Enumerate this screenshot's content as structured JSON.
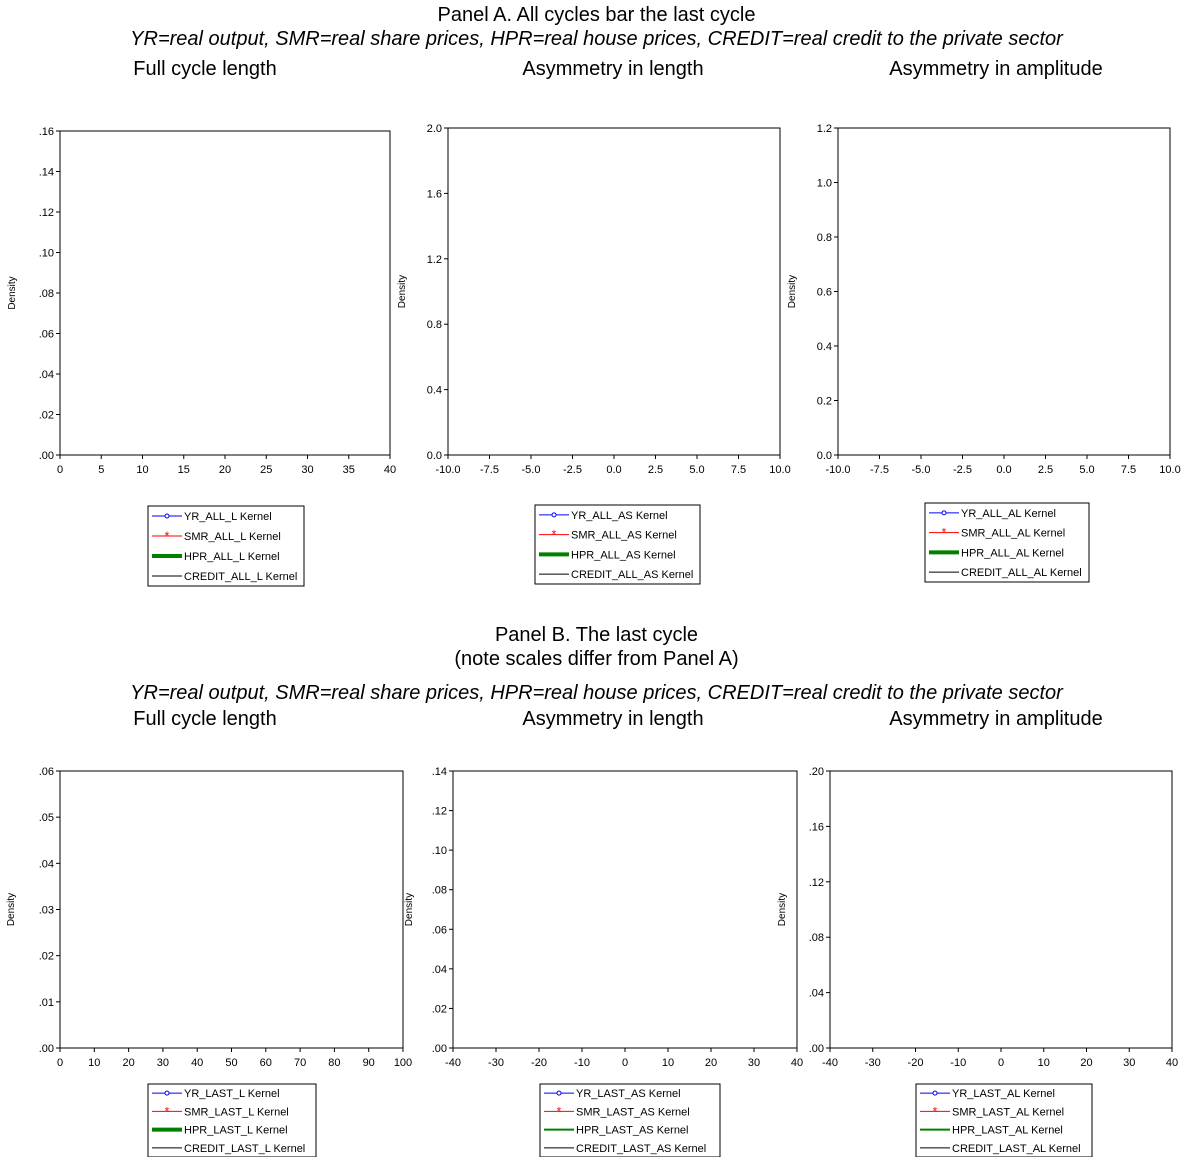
{
  "panel_a": {
    "title": "Panel A. All cycles bar the last cycle",
    "subtitle": "YR=real output, SMR=real share prices, HPR=real house prices, CREDIT=real credit to the private sector",
    "col_titles": [
      "Full cycle length",
      "Asymmetry in length",
      "Asymmetry in amplitude"
    ]
  },
  "panel_b": {
    "title": "Panel B. The last cycle",
    "note": "(note scales differ from Panel A)",
    "subtitle": "YR=real output, SMR=real share prices, HPR=real house prices, CREDIT=real credit to the private sector",
    "col_titles": [
      "Full cycle length",
      "Asymmetry in length",
      "Asymmetry in amplitude"
    ]
  },
  "colors": {
    "yr": "#0000ff",
    "smr": "#ff0000",
    "hpr": "#008000",
    "credit": "#000000"
  },
  "chart_data": [
    {
      "type": "line",
      "panel": "A",
      "ylabel": "Density",
      "xlim": [
        0,
        40
      ],
      "ylim": [
        0,
        0.16
      ],
      "xticks": [
        0,
        5,
        10,
        15,
        20,
        25,
        30,
        35,
        40
      ],
      "xtick_labels": [
        "0",
        "5",
        "10",
        "15",
        "20",
        "25",
        "30",
        "35",
        "40"
      ],
      "yticks": [
        0,
        0.02,
        0.04,
        0.06,
        0.08,
        0.1,
        0.12,
        0.14,
        0.16
      ],
      "ytick_labels": [
        ".00",
        ".02",
        ".04",
        ".06",
        ".08",
        ".10",
        ".12",
        ".14",
        ".16"
      ],
      "series": [
        {
          "name": "YR_ALL_L Kernel",
          "key": "yr",
          "marker": "circle",
          "values": []
        },
        {
          "name": "SMR_ALL_L Kernel",
          "key": "smr",
          "marker": "star",
          "values": []
        },
        {
          "name": "HPR_ALL_L Kernel",
          "key": "hpr",
          "marker": "thick",
          "values": []
        },
        {
          "name": "CREDIT_ALL_L Kernel",
          "key": "credit",
          "marker": "none",
          "values": []
        }
      ]
    },
    {
      "type": "line",
      "panel": "A",
      "ylabel": "Density",
      "xlim": [
        -10,
        10
      ],
      "ylim": [
        0,
        2
      ],
      "xticks": [
        -10,
        -7.5,
        -5,
        -2.5,
        0,
        2.5,
        5,
        7.5,
        10
      ],
      "xtick_labels": [
        "-10.0",
        "-7.5",
        "-5.0",
        "-2.5",
        "0.0",
        "2.5",
        "5.0",
        "7.5",
        "10.0"
      ],
      "yticks": [
        0,
        0.4,
        0.8,
        1.2,
        1.6,
        2.0
      ],
      "ytick_labels": [
        "0.0",
        "0.4",
        "0.8",
        "1.2",
        "1.6",
        "2.0"
      ],
      "series": [
        {
          "name": "YR_ALL_AS Kernel",
          "key": "yr",
          "marker": "circle",
          "values": []
        },
        {
          "name": "SMR_ALL_AS Kernel",
          "key": "smr",
          "marker": "star",
          "values": []
        },
        {
          "name": "HPR_ALL_AS Kernel",
          "key": "hpr",
          "marker": "thick",
          "values": []
        },
        {
          "name": "CREDIT_ALL_AS Kernel",
          "key": "credit",
          "marker": "none",
          "values": []
        }
      ]
    },
    {
      "type": "line",
      "panel": "A",
      "ylabel": "Density",
      "xlim": [
        -10,
        10
      ],
      "ylim": [
        0,
        1.2
      ],
      "xticks": [
        -10,
        -7.5,
        -5,
        -2.5,
        0,
        2.5,
        5,
        7.5,
        10
      ],
      "xtick_labels": [
        "-10.0",
        "-7.5",
        "-5.0",
        "-2.5",
        "0.0",
        "2.5",
        "5.0",
        "7.5",
        "10.0"
      ],
      "yticks": [
        0,
        0.2,
        0.4,
        0.6,
        0.8,
        1.0,
        1.2
      ],
      "ytick_labels": [
        "0.0",
        "0.2",
        "0.4",
        "0.6",
        "0.8",
        "1.0",
        "1.2"
      ],
      "series": [
        {
          "name": "YR_ALL_AL Kernel",
          "key": "yr",
          "marker": "circle",
          "values": []
        },
        {
          "name": "SMR_ALL_AL Kernel",
          "key": "smr",
          "marker": "star",
          "values": []
        },
        {
          "name": "HPR_ALL_AL Kernel",
          "key": "hpr",
          "marker": "thick",
          "values": []
        },
        {
          "name": "CREDIT_ALL_AL Kernel",
          "key": "credit",
          "marker": "none",
          "values": []
        }
      ]
    },
    {
      "type": "line",
      "panel": "B",
      "ylabel": "Density",
      "xlim": [
        0,
        100
      ],
      "ylim": [
        0,
        0.06
      ],
      "xticks": [
        0,
        10,
        20,
        30,
        40,
        50,
        60,
        70,
        80,
        90,
        100
      ],
      "xtick_labels": [
        "0",
        "10",
        "20",
        "30",
        "40",
        "50",
        "60",
        "70",
        "80",
        "90",
        "100"
      ],
      "yticks": [
        0,
        0.01,
        0.02,
        0.03,
        0.04,
        0.05,
        0.06
      ],
      "ytick_labels": [
        ".00",
        ".01",
        ".02",
        ".03",
        ".04",
        ".05",
        ".06"
      ],
      "series": [
        {
          "name": "YR_LAST_L Kernel",
          "key": "yr",
          "marker": "circle",
          "values": []
        },
        {
          "name": "SMR_LAST_L Kernel",
          "key": "smr",
          "marker": "star",
          "values": []
        },
        {
          "name": "HPR_LAST_L Kernel",
          "key": "hpr",
          "marker": "thick",
          "values": []
        },
        {
          "name": "CREDIT_LAST_L Kernel",
          "key": "credit",
          "marker": "none",
          "values": []
        }
      ]
    },
    {
      "type": "line",
      "panel": "B",
      "ylabel": "Density",
      "xlim": [
        -40,
        40
      ],
      "ylim": [
        0,
        0.14
      ],
      "xticks": [
        -40,
        -30,
        -20,
        -10,
        0,
        10,
        20,
        30,
        40
      ],
      "xtick_labels": [
        "-40",
        "-30",
        "-20",
        "-10",
        "0",
        "10",
        "20",
        "30",
        "40"
      ],
      "yticks": [
        0,
        0.02,
        0.04,
        0.06,
        0.08,
        0.1,
        0.12,
        0.14
      ],
      "ytick_labels": [
        ".00",
        ".02",
        ".04",
        ".06",
        ".08",
        ".10",
        ".12",
        ".14"
      ],
      "series": [
        {
          "name": "YR_LAST_AS Kernel",
          "key": "yr",
          "marker": "circle",
          "values": []
        },
        {
          "name": "SMR_LAST_AS Kernel",
          "key": "smr",
          "marker": "star",
          "values": []
        },
        {
          "name": "HPR_LAST_AS Kernel",
          "key": "hpr",
          "marker": "line",
          "values": []
        },
        {
          "name": "CREDIT_LAST_AS Kernel",
          "key": "credit",
          "marker": "none",
          "values": []
        }
      ]
    },
    {
      "type": "line",
      "panel": "B",
      "ylabel": "Density",
      "xlim": [
        -40,
        40
      ],
      "ylim": [
        0,
        0.2
      ],
      "xticks": [
        -40,
        -30,
        -20,
        -10,
        0,
        10,
        20,
        30,
        40
      ],
      "xtick_labels": [
        "-40",
        "-30",
        "-20",
        "-10",
        "0",
        "10",
        "20",
        "30",
        "40"
      ],
      "yticks": [
        0,
        0.04,
        0.08,
        0.12,
        0.16,
        0.2
      ],
      "ytick_labels": [
        ".00",
        ".04",
        ".08",
        ".12",
        ".16",
        ".20"
      ],
      "series": [
        {
          "name": "YR_LAST_AL Kernel",
          "key": "yr",
          "marker": "circle",
          "values": []
        },
        {
          "name": "SMR_LAST_AL Kernel",
          "key": "smr",
          "marker": "star",
          "values": []
        },
        {
          "name": "HPR_LAST_AL Kernel",
          "key": "hpr",
          "marker": "line",
          "values": []
        },
        {
          "name": "CREDIT_LAST_AL Kernel",
          "key": "credit",
          "marker": "none",
          "values": []
        }
      ]
    }
  ]
}
